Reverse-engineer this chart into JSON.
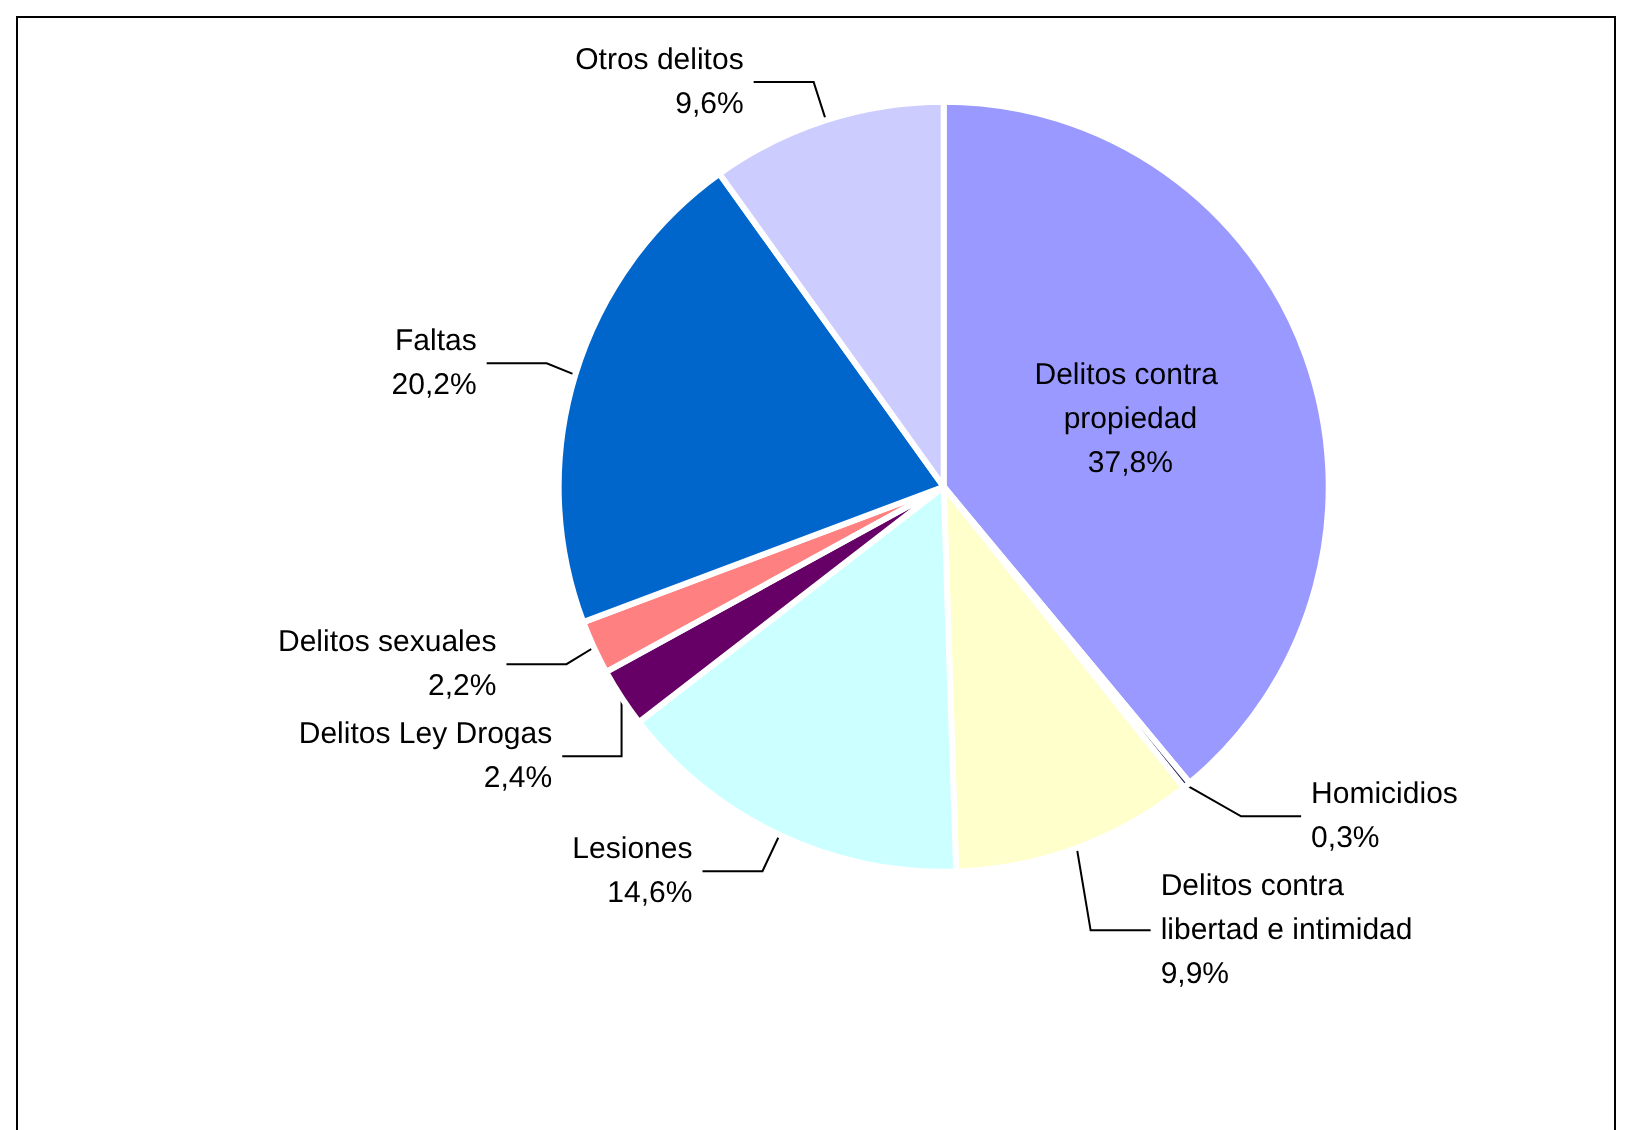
{
  "chart_data": {
    "type": "pie",
    "categories": [
      "Delitos contra propiedad",
      "Homicidios",
      "Delitos contra libertad e intimidad",
      "Lesiones",
      "Delitos Ley Drogas",
      "Delitos sexuales",
      "Faltas",
      "Otros delitos"
    ],
    "values": [
      37.8,
      0.3,
      9.9,
      14.6,
      2.4,
      2.2,
      20.2,
      9.6
    ],
    "value_labels": [
      "37,8%",
      "0,3%",
      "9,9%",
      "14,6%",
      "2,4%",
      "2,2%",
      "20,2%",
      "9,6%"
    ],
    "colors": [
      "#9999ff",
      "#333366",
      "#ffffcc",
      "#ccffff",
      "#660066",
      "#ff8080",
      "#0066cc",
      "#ccccff"
    ]
  }
}
